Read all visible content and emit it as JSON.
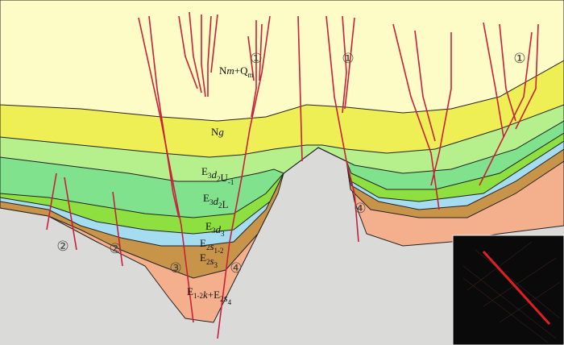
{
  "labels": [
    {
      "parts": [
        {
          "text": "N"
        },
        {
          "text": "m",
          "italic": true
        },
        {
          "text": "+Q"
        },
        {
          "text": "m",
          "sub": true
        }
      ]
    },
    {
      "parts": [
        {
          "text": "N"
        },
        {
          "text": "g",
          "italic": true
        }
      ]
    },
    {
      "parts": [
        {
          "text": "E"
        },
        {
          "text": "3",
          "sub": true
        },
        {
          "text": "d",
          "italic": true
        },
        {
          "text": "2",
          "sub": true
        },
        {
          "text": "U"
        },
        {
          "text": "-1",
          "sub": true
        }
      ]
    },
    {
      "parts": [
        {
          "text": "E"
        },
        {
          "text": "3",
          "sub": true
        },
        {
          "text": "d",
          "italic": true
        },
        {
          "text": "2",
          "sub": true
        },
        {
          "text": "L"
        }
      ]
    },
    {
      "parts": [
        {
          "text": "E"
        },
        {
          "text": "3",
          "sub": true
        },
        {
          "text": "d",
          "italic": true
        },
        {
          "text": "3",
          "sub": true
        }
      ]
    },
    {
      "parts": [
        {
          "text": "E"
        },
        {
          "text": "2",
          "sub": true
        },
        {
          "text": "s",
          "italic": true
        },
        {
          "text": "1-2",
          "sub": true
        }
      ]
    },
    {
      "parts": [
        {
          "text": "E"
        },
        {
          "text": "2",
          "sub": true
        },
        {
          "text": "s",
          "italic": true
        },
        {
          "text": "3",
          "sub": true
        }
      ]
    },
    {
      "parts": [
        {
          "text": "E"
        },
        {
          "text": "1-2",
          "sub": true
        },
        {
          "text": "k",
          "italic": true
        },
        {
          "text": "+E"
        },
        {
          "text": "2",
          "sub": true
        },
        {
          "text": "s",
          "italic": true
        },
        {
          "text": "4",
          "sub": true
        }
      ]
    }
  ],
  "markers": [
    "①",
    "①",
    "①",
    "②",
    "②",
    "③",
    "④",
    "④"
  ]
}
